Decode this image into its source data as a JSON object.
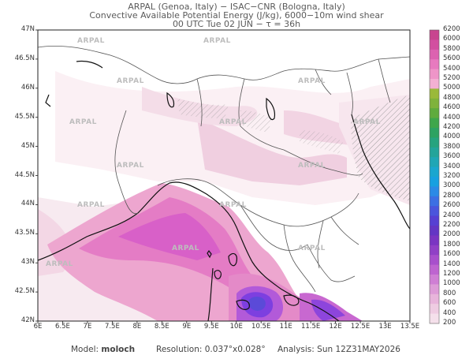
{
  "header": {
    "line1": "ARPAL (Genoa, Italy)  −  ISAC−CNR (Bologna, Italy)",
    "line2": "Convective Available Potential Energy (J/kg), 6000−10m wind shear",
    "line3": "00 UTC Tue 02 JUN  −  τ = 36h"
  },
  "map": {
    "lat_labels": [
      "47N",
      "46.5N",
      "46N",
      "45.5N",
      "45N",
      "44.5N",
      "44N",
      "43.5N",
      "43N",
      "42.5N",
      "42N"
    ],
    "lon_labels": [
      "6E",
      "6.5E",
      "7E",
      "7.5E",
      "8E",
      "8.5E",
      "9E",
      "9.5E",
      "10E",
      "10.5E",
      "11E",
      "11.5E",
      "12E",
      "12.5E",
      "13E",
      "13.5E"
    ],
    "lat_range": [
      42,
      47
    ],
    "lon_range": [
      6,
      13.5
    ],
    "watermark": "ARPAL",
    "colors": {
      "land": "#ffffff",
      "cape_low": "#f6e8ef",
      "cape_mid": "#e7a3ce",
      "cape_high": "#d65fc4",
      "cape_peak": "#7b3bd6",
      "shear_hatch": "#9a9a9a",
      "coast": "#111111",
      "borders": "#555555"
    }
  },
  "colorbar": {
    "levels": [
      "6200",
      "6000",
      "5800",
      "5600",
      "5400",
      "5200",
      "5000",
      "4800",
      "4600",
      "4400",
      "4200",
      "4000",
      "3800",
      "3600",
      "3400",
      "3200",
      "3000",
      "2800",
      "2600",
      "2400",
      "2200",
      "2000",
      "1800",
      "1600",
      "1400",
      "1200",
      "1000",
      "800",
      "600",
      "400",
      "200"
    ],
    "colors": [
      "#c8458f",
      "#d24fa0",
      "#dc62b0",
      "#e77abf",
      "#ee95c8",
      "#f3b0d3",
      "#9ab93a",
      "#7fb23b",
      "#5fab3d",
      "#3fa64b",
      "#2ea262",
      "#27a37e",
      "#23a49a",
      "#1fa6b5",
      "#1aa6cf",
      "#17a0e0",
      "#2b8ae6",
      "#3c6fe3",
      "#4a55dc",
      "#5640d2",
      "#6336c4",
      "#7a35c2",
      "#9040c6",
      "#a84fcc",
      "#be64d0",
      "#cf7fd4",
      "#dd9cd7",
      "#e8b5db",
      "#efcce2",
      "#f5e0eb"
    ]
  },
  "footer": {
    "model_label": "Model:",
    "model_value": "moloch",
    "resolution_label": "Resolution:",
    "resolution_value": "0.037°x0.028°",
    "analysis_label": "Analysis:",
    "analysis_value": "Sun 12Z31MAY2026"
  }
}
